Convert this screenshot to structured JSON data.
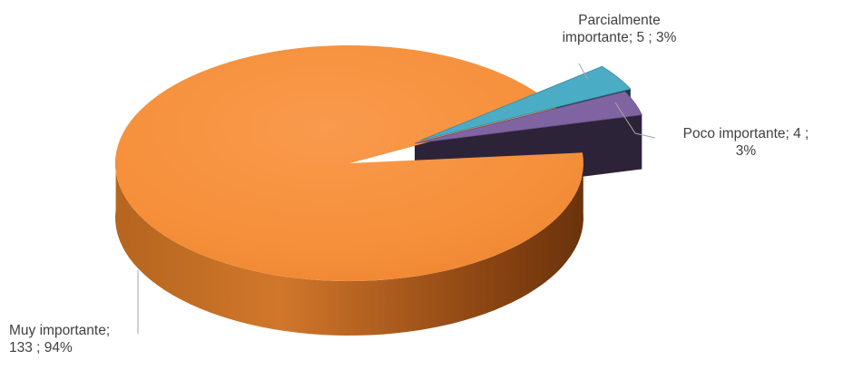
{
  "chart_data": {
    "type": "pie",
    "style": "3d-exploded",
    "title": "",
    "slices": [
      {
        "label": "Muy importante",
        "value": 133,
        "percent": "94%",
        "color": "#F79646",
        "label_lines": [
          "Muy importante;",
          "133 ; 94%"
        ]
      },
      {
        "label": "Parcialmente importante",
        "value": 5,
        "percent": "3%",
        "color": "#4BACC6",
        "label_lines": [
          "Parcialmente",
          "importante;  5 ; 3%"
        ]
      },
      {
        "label": "Poco importante",
        "value": 4,
        "percent": "3%",
        "color": "#8064A2",
        "label_lines": [
          "Poco importante;  4 ;",
          "3%"
        ]
      }
    ]
  }
}
